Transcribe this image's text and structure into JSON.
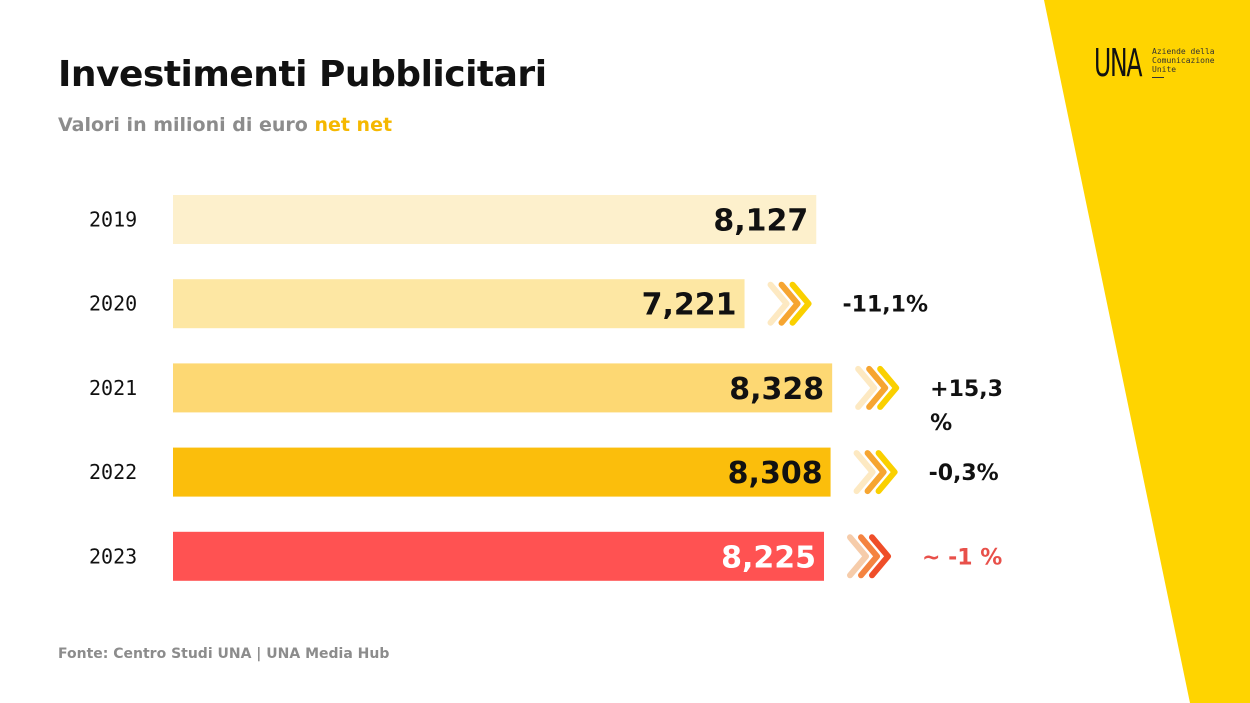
{
  "title": "Investimenti Pubblicitari",
  "subtitle": {
    "text": "Valori in milioni di euro ",
    "highlight": "net net"
  },
  "source": "Fonte: Centro Studi UNA | UNA Media Hub",
  "logo": {
    "mark": "UNA",
    "text": "Aziende della Comunicazione Unite"
  },
  "colors": {
    "accent": "#f5b800",
    "band": "#ffd400",
    "bars": [
      "#fdf0cc",
      "#fde7a3",
      "#fdd873",
      "#fbbe0c",
      "#ff5252"
    ],
    "value_text": [
      "#111111",
      "#111111",
      "#111111",
      "#111111",
      "#ffffff"
    ],
    "change_text": [
      "#111111",
      "#111111",
      "#111111",
      "#111111",
      "#e8504a"
    ],
    "arrows_default": [
      "#fde9c2",
      "#f6a531",
      "#fad000"
    ],
    "arrows_highlight": [
      "#f6ccaa",
      "#f48340",
      "#ef4e29"
    ]
  },
  "chart_data": {
    "type": "bar",
    "orientation": "horizontal",
    "categories": [
      "2019",
      "2020",
      "2021",
      "2022",
      "2023"
    ],
    "values": [
      8127,
      7221,
      8328,
      8308,
      8225
    ],
    "value_labels": [
      "8,127",
      "7,221",
      "8,328",
      "8,308",
      "8,225"
    ],
    "changes": [
      null,
      [
        "-11,1%"
      ],
      [
        "+15,3",
        "%"
      ],
      [
        "-0,3%"
      ],
      [
        "~ -1 %"
      ]
    ],
    "xlim": [
      0,
      8500
    ],
    "title": "Investimenti Pubblicitari",
    "xlabel": "",
    "ylabel": "",
    "grid": false
  }
}
